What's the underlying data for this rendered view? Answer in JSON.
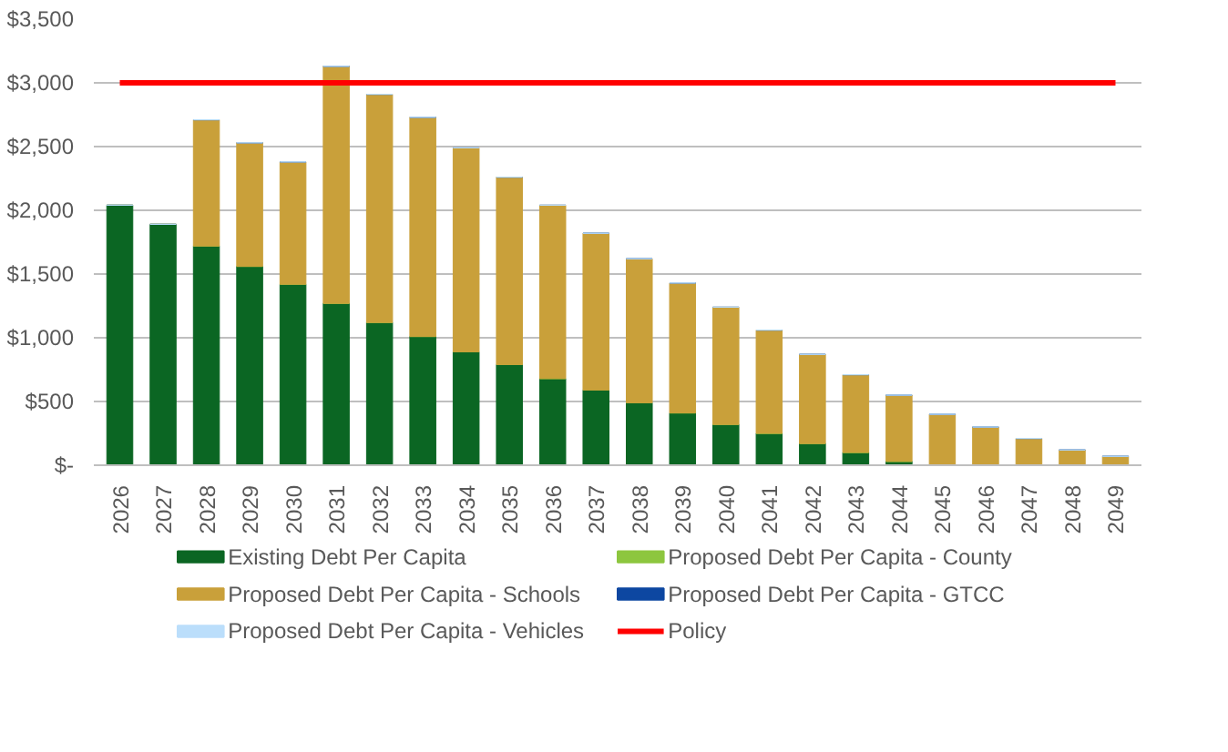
{
  "chart_data": {
    "type": "bar",
    "stacked": true,
    "categories": [
      "2026",
      "2027",
      "2028",
      "2029",
      "2030",
      "2031",
      "2032",
      "2033",
      "2034",
      "2035",
      "2036",
      "2037",
      "2038",
      "2039",
      "2040",
      "2041",
      "2042",
      "2043",
      "2044",
      "2045",
      "2046",
      "2047",
      "2048",
      "2049"
    ],
    "series": [
      {
        "name": "Existing Debt Per Capita",
        "color": "#0b6623",
        "values": [
          2040,
          1890,
          1720,
          1560,
          1420,
          1270,
          1120,
          1010,
          890,
          790,
          680,
          590,
          490,
          410,
          320,
          250,
          170,
          100,
          30,
          0,
          0,
          0,
          0,
          0
        ]
      },
      {
        "name": "Proposed Debt Per Capita - County",
        "color": "#8dc63f",
        "values": [
          0,
          0,
          0,
          0,
          0,
          0,
          0,
          0,
          0,
          0,
          0,
          0,
          0,
          0,
          0,
          0,
          0,
          0,
          0,
          0,
          0,
          0,
          0,
          0
        ]
      },
      {
        "name": "Proposed Debt Per Capita - Schools",
        "color": "#c9a03a",
        "values": [
          0,
          0,
          990,
          970,
          960,
          1860,
          1790,
          1720,
          1600,
          1470,
          1360,
          1230,
          1130,
          1020,
          920,
          810,
          700,
          610,
          520,
          400,
          300,
          210,
          120,
          70
        ]
      },
      {
        "name": "Proposed Debt Per Capita - GTCC",
        "color": "#0d47a1",
        "values": [
          0,
          0,
          0,
          0,
          0,
          0,
          0,
          0,
          0,
          0,
          0,
          0,
          0,
          0,
          0,
          0,
          0,
          0,
          0,
          0,
          0,
          0,
          0,
          0
        ]
      },
      {
        "name": "Proposed Debt Per Capita - Vehicles",
        "color": "#bbdefb",
        "values": [
          0,
          0,
          0,
          0,
          0,
          0,
          0,
          0,
          0,
          0,
          0,
          0,
          0,
          0,
          0,
          0,
          0,
          0,
          0,
          0,
          0,
          0,
          0,
          0
        ]
      },
      {
        "name": "Policy",
        "color": "#ff0000",
        "type": "line",
        "values": [
          3000,
          3000,
          3000,
          3000,
          3000,
          3000,
          3000,
          3000,
          3000,
          3000,
          3000,
          3000,
          3000,
          3000,
          3000,
          3000,
          3000,
          3000,
          3000,
          3000,
          3000,
          3000,
          3000,
          3000
        ]
      }
    ],
    "ylim": [
      0,
      3500
    ],
    "yticks": [
      {
        "value": 0,
        "label": "$-"
      },
      {
        "value": 500,
        "label": "$500"
      },
      {
        "value": 1000,
        "label": "$1,000"
      },
      {
        "value": 1500,
        "label": "$1,500"
      },
      {
        "value": 2000,
        "label": "$2,000"
      },
      {
        "value": 2500,
        "label": "$2,500"
      },
      {
        "value": 3000,
        "label": "$3,000"
      },
      {
        "value": 3500,
        "label": "$3,500"
      }
    ],
    "grid": "y",
    "legend": "bottom"
  }
}
